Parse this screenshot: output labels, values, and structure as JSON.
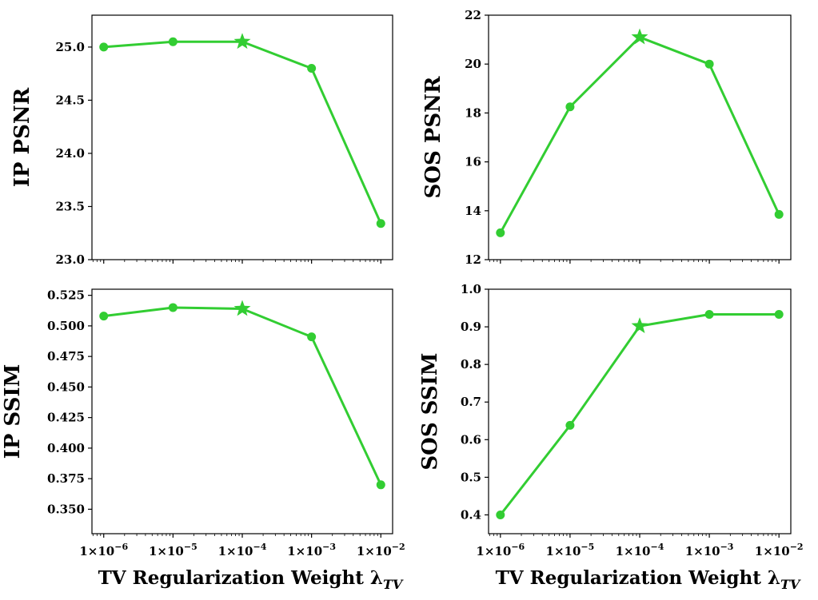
{
  "colors": {
    "series": "#32cd32",
    "axes": "#000000",
    "background": "#ffffff"
  },
  "chart_data": [
    {
      "type": "line",
      "xscale": "log",
      "x": [
        1e-06,
        1e-05,
        0.0001,
        0.001,
        0.01
      ],
      "values": [
        25.0,
        25.05,
        25.05,
        24.8,
        23.34
      ],
      "best_index": 2,
      "ylabel": "IP PSNR",
      "xlabel": "",
      "ylim": [
        23.0,
        25.3
      ],
      "yticks": [
        23.0,
        23.5,
        24.0,
        24.5,
        25.0
      ],
      "ytick_labels": [
        "23.0",
        "23.5",
        "24.0",
        "24.5",
        "25.0"
      ],
      "show_xtick_labels": false
    },
    {
      "type": "line",
      "xscale": "log",
      "x": [
        1e-06,
        1e-05,
        0.0001,
        0.001,
        0.01
      ],
      "values": [
        13.1,
        18.25,
        21.1,
        20.0,
        13.85
      ],
      "best_index": 2,
      "ylabel": "SOS PSNR",
      "xlabel": "",
      "ylim": [
        12,
        22
      ],
      "yticks": [
        12,
        14,
        16,
        18,
        20,
        22
      ],
      "ytick_labels": [
        "12",
        "14",
        "16",
        "18",
        "20",
        "22"
      ],
      "show_xtick_labels": false
    },
    {
      "type": "line",
      "xscale": "log",
      "x": [
        1e-06,
        1e-05,
        0.0001,
        0.001,
        0.01
      ],
      "values": [
        0.508,
        0.515,
        0.514,
        0.491,
        0.37
      ],
      "best_index": 2,
      "ylabel": "IP SSIM",
      "xlabel": "TV Regularization Weight λ",
      "xlabel_sub": "TV",
      "ylim": [
        0.33,
        0.53
      ],
      "yticks": [
        0.35,
        0.375,
        0.4,
        0.425,
        0.45,
        0.475,
        0.5,
        0.525
      ],
      "ytick_labels": [
        "0.350",
        "0.375",
        "0.400",
        "0.425",
        "0.450",
        "0.475",
        "0.500",
        "0.525"
      ],
      "show_xtick_labels": true
    },
    {
      "type": "line",
      "xscale": "log",
      "x": [
        1e-06,
        1e-05,
        0.0001,
        0.001,
        0.01
      ],
      "values": [
        0.4,
        0.638,
        0.902,
        0.933,
        0.933
      ],
      "best_index": 2,
      "ylabel": "SOS SSIM",
      "xlabel": "TV Regularization Weight λ",
      "xlabel_sub": "TV",
      "ylim": [
        0.35,
        1.0
      ],
      "yticks": [
        0.4,
        0.5,
        0.6,
        0.7,
        0.8,
        0.9,
        1.0
      ],
      "ytick_labels": [
        "0.4",
        "0.5",
        "0.6",
        "0.7",
        "0.8",
        "0.9",
        "1.0"
      ],
      "show_xtick_labels": true
    }
  ],
  "xtick_mantissa": "1",
  "xtick_exponents": [
    "−6",
    "−5",
    "−4",
    "−3",
    "−2"
  ]
}
